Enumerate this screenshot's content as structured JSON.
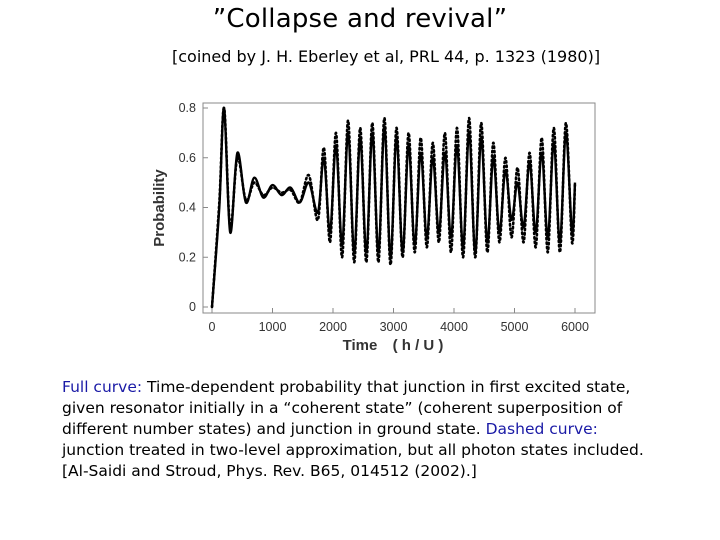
{
  "heading": {
    "title": "”Collapse and revival”",
    "subtitle": "[coined by J. H. Eberley et al, PRL 44, p. 1323 (1980)]"
  },
  "chart_data": {
    "type": "line",
    "xlabel_main": "Time",
    "xlabel_unit": "( h / U )",
    "ylabel": "Probability",
    "xlim": [
      0,
      6000
    ],
    "ylim": [
      0,
      0.8
    ],
    "x_ticks": [
      "0",
      "1000",
      "2000",
      "3000",
      "4000",
      "5000",
      "6000"
    ],
    "y_ticks": [
      "0",
      "0.2",
      "0.4",
      "0.6",
      "0.8"
    ],
    "grid": false,
    "series": [
      {
        "style": "solid",
        "color": "#000000",
        "x": [
          0,
          120,
          200,
          300,
          420,
          560,
          700,
          850,
          1000,
          1150,
          1300,
          1450,
          1600,
          1750,
          1850,
          1950,
          2050,
          2150,
          2250,
          2350,
          2450,
          2550,
          2650,
          2750,
          2850,
          2950,
          3050,
          3150,
          3250,
          3350,
          3450,
          3550,
          3650,
          3750,
          3850,
          3950,
          4050,
          4150,
          4250,
          4350,
          4450,
          4550,
          4650,
          4750,
          4850,
          4950,
          5050,
          5150,
          5250,
          5350,
          5450,
          5550,
          5650,
          5750,
          5850,
          5950,
          6000
        ],
        "y": [
          0.0,
          0.4,
          0.8,
          0.3,
          0.62,
          0.42,
          0.52,
          0.44,
          0.49,
          0.45,
          0.48,
          0.42,
          0.5,
          0.38,
          0.6,
          0.3,
          0.65,
          0.25,
          0.7,
          0.22,
          0.68,
          0.22,
          0.7,
          0.22,
          0.72,
          0.2,
          0.68,
          0.22,
          0.65,
          0.25,
          0.62,
          0.28,
          0.6,
          0.3,
          0.62,
          0.28,
          0.65,
          0.24,
          0.7,
          0.22,
          0.68,
          0.26,
          0.6,
          0.3,
          0.55,
          0.35,
          0.5,
          0.32,
          0.58,
          0.3,
          0.62,
          0.28,
          0.66,
          0.26,
          0.7,
          0.3,
          0.5
        ]
      },
      {
        "style": "dashed",
        "color": "#000000",
        "x": [
          0,
          120,
          200,
          300,
          420,
          560,
          700,
          850,
          1000,
          1150,
          1300,
          1450,
          1600,
          1750,
          1850,
          1950,
          2050,
          2150,
          2250,
          2350,
          2450,
          2550,
          2650,
          2750,
          2850,
          2950,
          3050,
          3150,
          3250,
          3350,
          3450,
          3550,
          3650,
          3750,
          3850,
          3950,
          4050,
          4150,
          4250,
          4350,
          4450,
          4550,
          4650,
          4750,
          4850,
          4950,
          5050,
          5150,
          5250,
          5350,
          5450,
          5550,
          5650,
          5750,
          5850,
          5950,
          6000
        ],
        "y": [
          0.0,
          0.42,
          0.8,
          0.32,
          0.6,
          0.43,
          0.5,
          0.45,
          0.48,
          0.46,
          0.47,
          0.42,
          0.53,
          0.35,
          0.64,
          0.26,
          0.7,
          0.2,
          0.75,
          0.18,
          0.72,
          0.18,
          0.74,
          0.18,
          0.76,
          0.17,
          0.72,
          0.2,
          0.7,
          0.22,
          0.68,
          0.24,
          0.66,
          0.26,
          0.7,
          0.22,
          0.72,
          0.2,
          0.76,
          0.2,
          0.74,
          0.22,
          0.66,
          0.26,
          0.6,
          0.28,
          0.56,
          0.26,
          0.62,
          0.24,
          0.68,
          0.22,
          0.72,
          0.22,
          0.74,
          0.26,
          0.5
        ]
      }
    ]
  },
  "caption": {
    "line1_blue": "Full curve:",
    "line1_rest": " Time-dependent probability that junction in first excited state,",
    "line2": "given resonator  initially in a “coherent state” (coherent superposition of",
    "line3_a": "different number states) and junction in ground state.  ",
    "line3_blue": "Dashed curve:",
    "line4": "junction treated in two-level approximation, but all photon states included.",
    "line5": "[Al-Saidi and Stroud, Phys. Rev. B65, 014512 (2002).]"
  }
}
